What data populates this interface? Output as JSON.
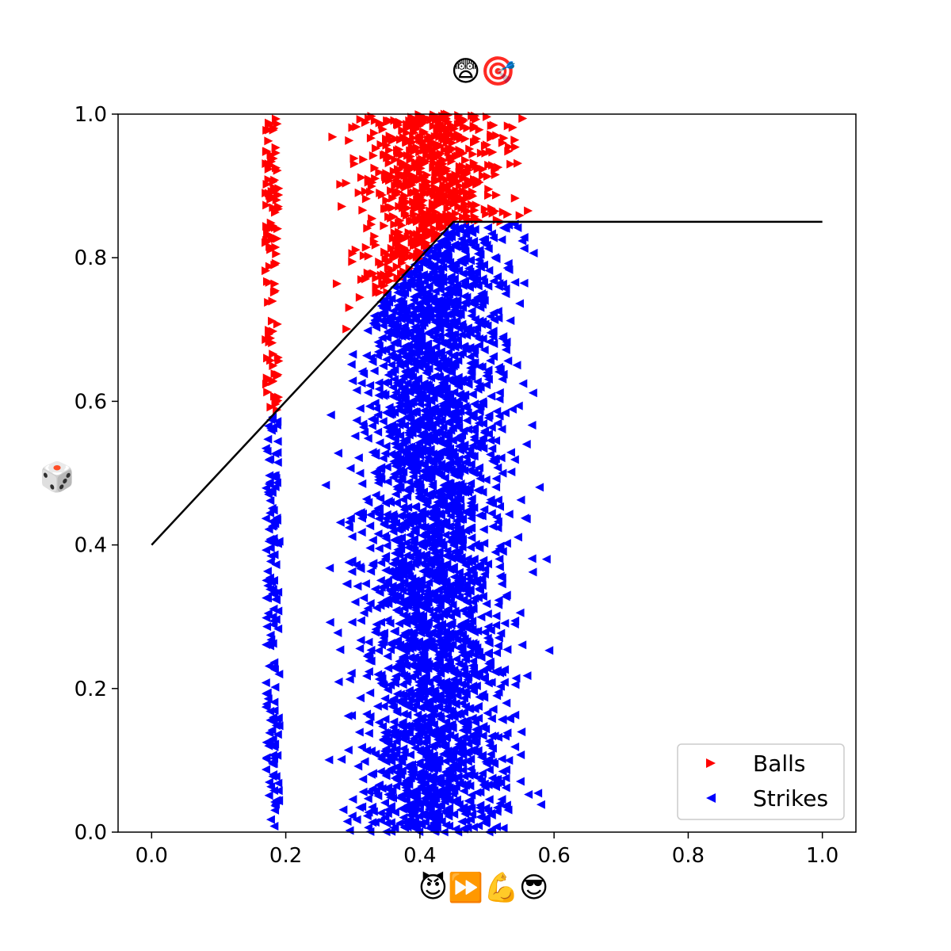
{
  "chart_data": {
    "type": "scatter",
    "title": "😨🎯",
    "xlabel": "😈⏩💪😎",
    "ylabel": "🎲",
    "xlim": [
      -0.05,
      1.05
    ],
    "ylim": [
      0.0,
      1.0
    ],
    "xticks": [
      "0.0",
      "0.2",
      "0.4",
      "0.6",
      "0.8",
      "1.0"
    ],
    "yticks": [
      "0.0",
      "0.2",
      "0.4",
      "0.6",
      "0.8",
      "1.0"
    ],
    "grid": false,
    "legend": {
      "placement": "lower right",
      "entries": [
        "Balls",
        "Strikes"
      ]
    },
    "series": [
      {
        "name": "Balls",
        "marker": "triangle-right",
        "color": "#ff0000",
        "note_region": "points above boundary line, x approx 0.15-0.66",
        "count_approx": 1000
      },
      {
        "name": "Strikes",
        "marker": "triangle-left",
        "color": "#0000ff",
        "note_region": "points below boundary line, x approx 0.15-0.71",
        "count_approx": 3000
      }
    ],
    "boundary_line": {
      "color": "#000000",
      "x": [
        0.0,
        0.45,
        1.0
      ],
      "y": [
        0.4,
        0.85,
        0.85
      ]
    }
  }
}
